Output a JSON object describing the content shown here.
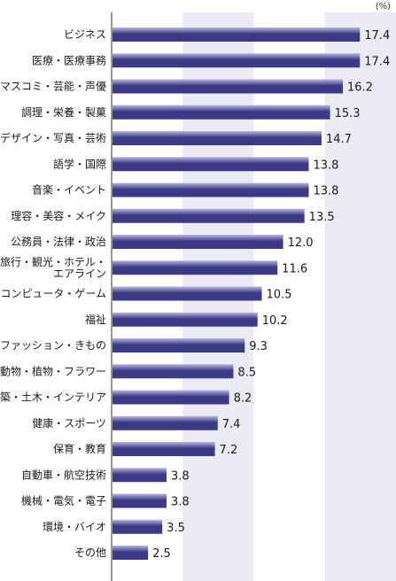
{
  "chart_data": {
    "type": "bar",
    "orientation": "horizontal",
    "unit": "(%)",
    "categories": [
      "ビジネス",
      "医療・医療事務",
      "マスコミ・芸能・声優",
      "調理・栄養・製菓",
      "デザイン・写真・芸術",
      "語学・国際",
      "音楽・イベント",
      "理容・美容・メイク",
      "公務員・法律・政治",
      "旅行・観光・ホテル・\nエアライン",
      "コンピュータ・ゲーム",
      "福祉",
      "ファッション・きもの",
      "動物・植物・フラワー",
      "建築・土木・インテリア",
      "健康・スポーツ",
      "保育・教育",
      "自動車・航空技術",
      "機械・電気・電子",
      "環境・バイオ",
      "その他"
    ],
    "values": [
      17.4,
      17.4,
      16.2,
      15.3,
      14.7,
      13.8,
      13.8,
      13.5,
      12.0,
      11.6,
      10.5,
      10.2,
      9.3,
      8.5,
      8.2,
      7.4,
      7.2,
      3.8,
      3.8,
      3.5,
      2.5
    ],
    "value_labels": [
      "17.4",
      "17.4",
      "16.2",
      "15.3",
      "14.7",
      "13.8",
      "13.8",
      "13.5",
      "12.0",
      "11.6",
      "10.5",
      "10.2",
      "9.3",
      "8.5",
      "8.2",
      "7.4",
      "7.2",
      "3.8",
      "3.8",
      "3.5",
      "2.5"
    ],
    "xlim": [
      0,
      20
    ],
    "band_step": 5,
    "grid": true,
    "colors": {
      "bar_dark": "#3d3a85",
      "bar_light": "#b9b7e3",
      "band_light": "#ffffff",
      "band_shade": "#ebebf4",
      "axis": "#333333"
    }
  }
}
